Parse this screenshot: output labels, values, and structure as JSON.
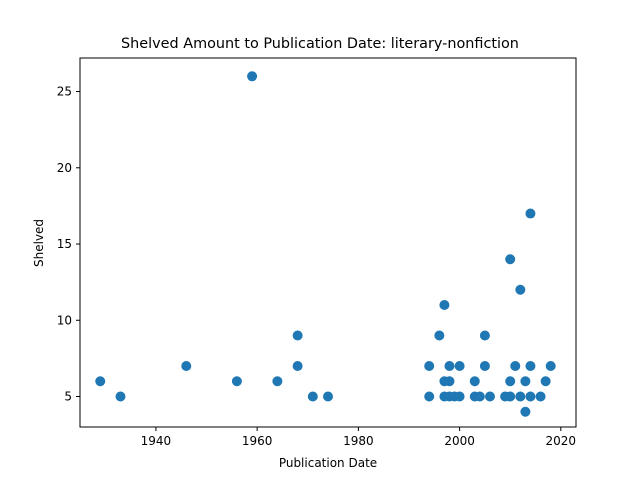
{
  "chart_data": {
    "type": "scatter",
    "title": "Shelved Amount to Publication Date: literary-nonfiction",
    "xlabel": "Publication Date",
    "ylabel": "Shelved",
    "xlim": [
      1925,
      2023
    ],
    "ylim": [
      3,
      27.2
    ],
    "xticks": [
      1940,
      1960,
      1980,
      2000,
      2020
    ],
    "yticks": [
      5,
      10,
      15,
      20,
      25
    ],
    "point_color": "#1f77b4",
    "grid": false,
    "legend": "none",
    "points": [
      {
        "x": 1929,
        "y": 6
      },
      {
        "x": 1933,
        "y": 5
      },
      {
        "x": 1946,
        "y": 7
      },
      {
        "x": 1956,
        "y": 6
      },
      {
        "x": 1959,
        "y": 26
      },
      {
        "x": 1964,
        "y": 6
      },
      {
        "x": 1968,
        "y": 9
      },
      {
        "x": 1968,
        "y": 7
      },
      {
        "x": 1971,
        "y": 5
      },
      {
        "x": 1974,
        "y": 5
      },
      {
        "x": 1994,
        "y": 7
      },
      {
        "x": 1994,
        "y": 5
      },
      {
        "x": 1996,
        "y": 9
      },
      {
        "x": 1997,
        "y": 11
      },
      {
        "x": 1997,
        "y": 6
      },
      {
        "x": 1997,
        "y": 5
      },
      {
        "x": 1998,
        "y": 7
      },
      {
        "x": 1998,
        "y": 6
      },
      {
        "x": 1998,
        "y": 5
      },
      {
        "x": 1999,
        "y": 5
      },
      {
        "x": 2000,
        "y": 7
      },
      {
        "x": 2000,
        "y": 5
      },
      {
        "x": 2003,
        "y": 6
      },
      {
        "x": 2003,
        "y": 5
      },
      {
        "x": 2004,
        "y": 5
      },
      {
        "x": 2005,
        "y": 9
      },
      {
        "x": 2005,
        "y": 7
      },
      {
        "x": 2006,
        "y": 5
      },
      {
        "x": 2009,
        "y": 5
      },
      {
        "x": 2010,
        "y": 14
      },
      {
        "x": 2010,
        "y": 6
      },
      {
        "x": 2010,
        "y": 5
      },
      {
        "x": 2011,
        "y": 7
      },
      {
        "x": 2012,
        "y": 12
      },
      {
        "x": 2012,
        "y": 5
      },
      {
        "x": 2013,
        "y": 6
      },
      {
        "x": 2013,
        "y": 4
      },
      {
        "x": 2014,
        "y": 17
      },
      {
        "x": 2014,
        "y": 7
      },
      {
        "x": 2014,
        "y": 5
      },
      {
        "x": 2016,
        "y": 5
      },
      {
        "x": 2017,
        "y": 6
      },
      {
        "x": 2018,
        "y": 7
      }
    ]
  }
}
